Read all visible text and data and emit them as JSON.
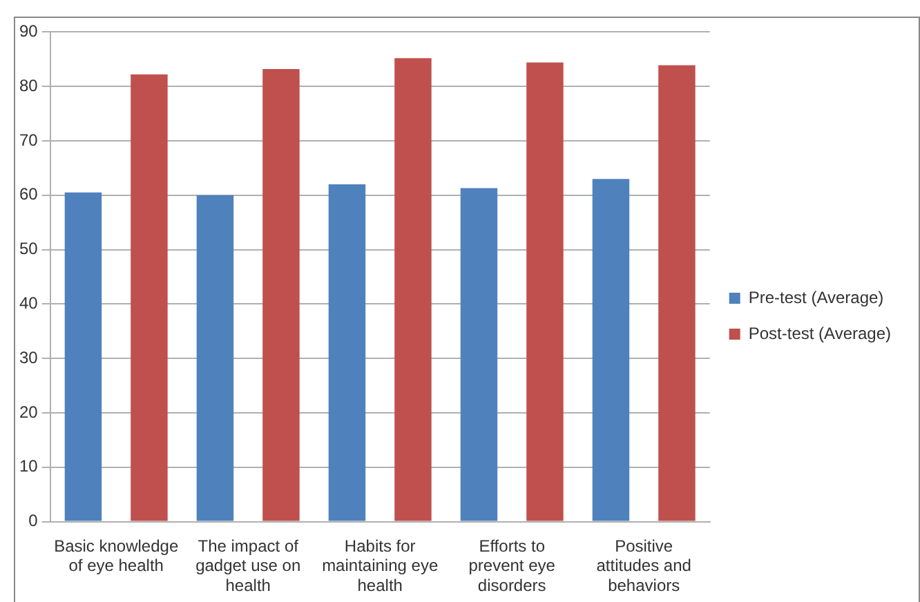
{
  "chart_data": {
    "type": "bar",
    "categories": [
      "Basic knowledge of eye health",
      "The impact of gadget use on health",
      "Habits for maintaining eye health",
      "Efforts to prevent eye disorders",
      "Positive attitudes and behaviors"
    ],
    "series": [
      {
        "name": "Pre-test (Average)",
        "color": "#4f81bd",
        "values": [
          60.5,
          60,
          62,
          61.3,
          63
        ]
      },
      {
        "name": "Post-test (Average)",
        "color": "#c0504d",
        "values": [
          82.2,
          83.2,
          85.2,
          84.4,
          83.9
        ]
      }
    ],
    "ylim": [
      0,
      90
    ],
    "yticks": [
      0,
      10,
      20,
      30,
      40,
      50,
      60,
      70,
      80,
      90
    ],
    "grid": "y",
    "legend": "right"
  }
}
